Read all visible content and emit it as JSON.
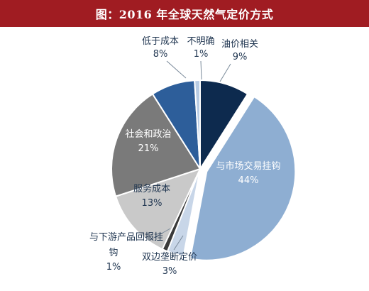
{
  "chart_data": {
    "type": "pie",
    "title": "图：2016 年全球天然气定价方式",
    "slices": [
      {
        "label": "油价相关",
        "value": 9,
        "value_text": "9%",
        "color": "#0d2a4e"
      },
      {
        "label": "与市场交易挂钩",
        "value": 44,
        "value_text": "44%",
        "color": "#8eaed2"
      },
      {
        "label": "双边垄断定价",
        "value": 3,
        "value_text": "3%",
        "color": "#c8d6e8"
      },
      {
        "label": "与下游产品回报挂钩",
        "label_line1": "与下游产品回报挂",
        "label_line2": "钩",
        "value": 1,
        "value_text": "1%",
        "color": "#3a3a3a"
      },
      {
        "label": "服务成本",
        "value": 13,
        "value_text": "13%",
        "color": "#c9c9c9"
      },
      {
        "label": "社会和政治",
        "value": 21,
        "value_text": "21%",
        "color": "#7a7a7a"
      },
      {
        "label": "低于成本",
        "value": 8,
        "value_text": "8%",
        "color": "#2d5e9a"
      },
      {
        "label": "不明确",
        "value": 1,
        "value_text": "1%",
        "color": "#b8cce4"
      }
    ]
  }
}
